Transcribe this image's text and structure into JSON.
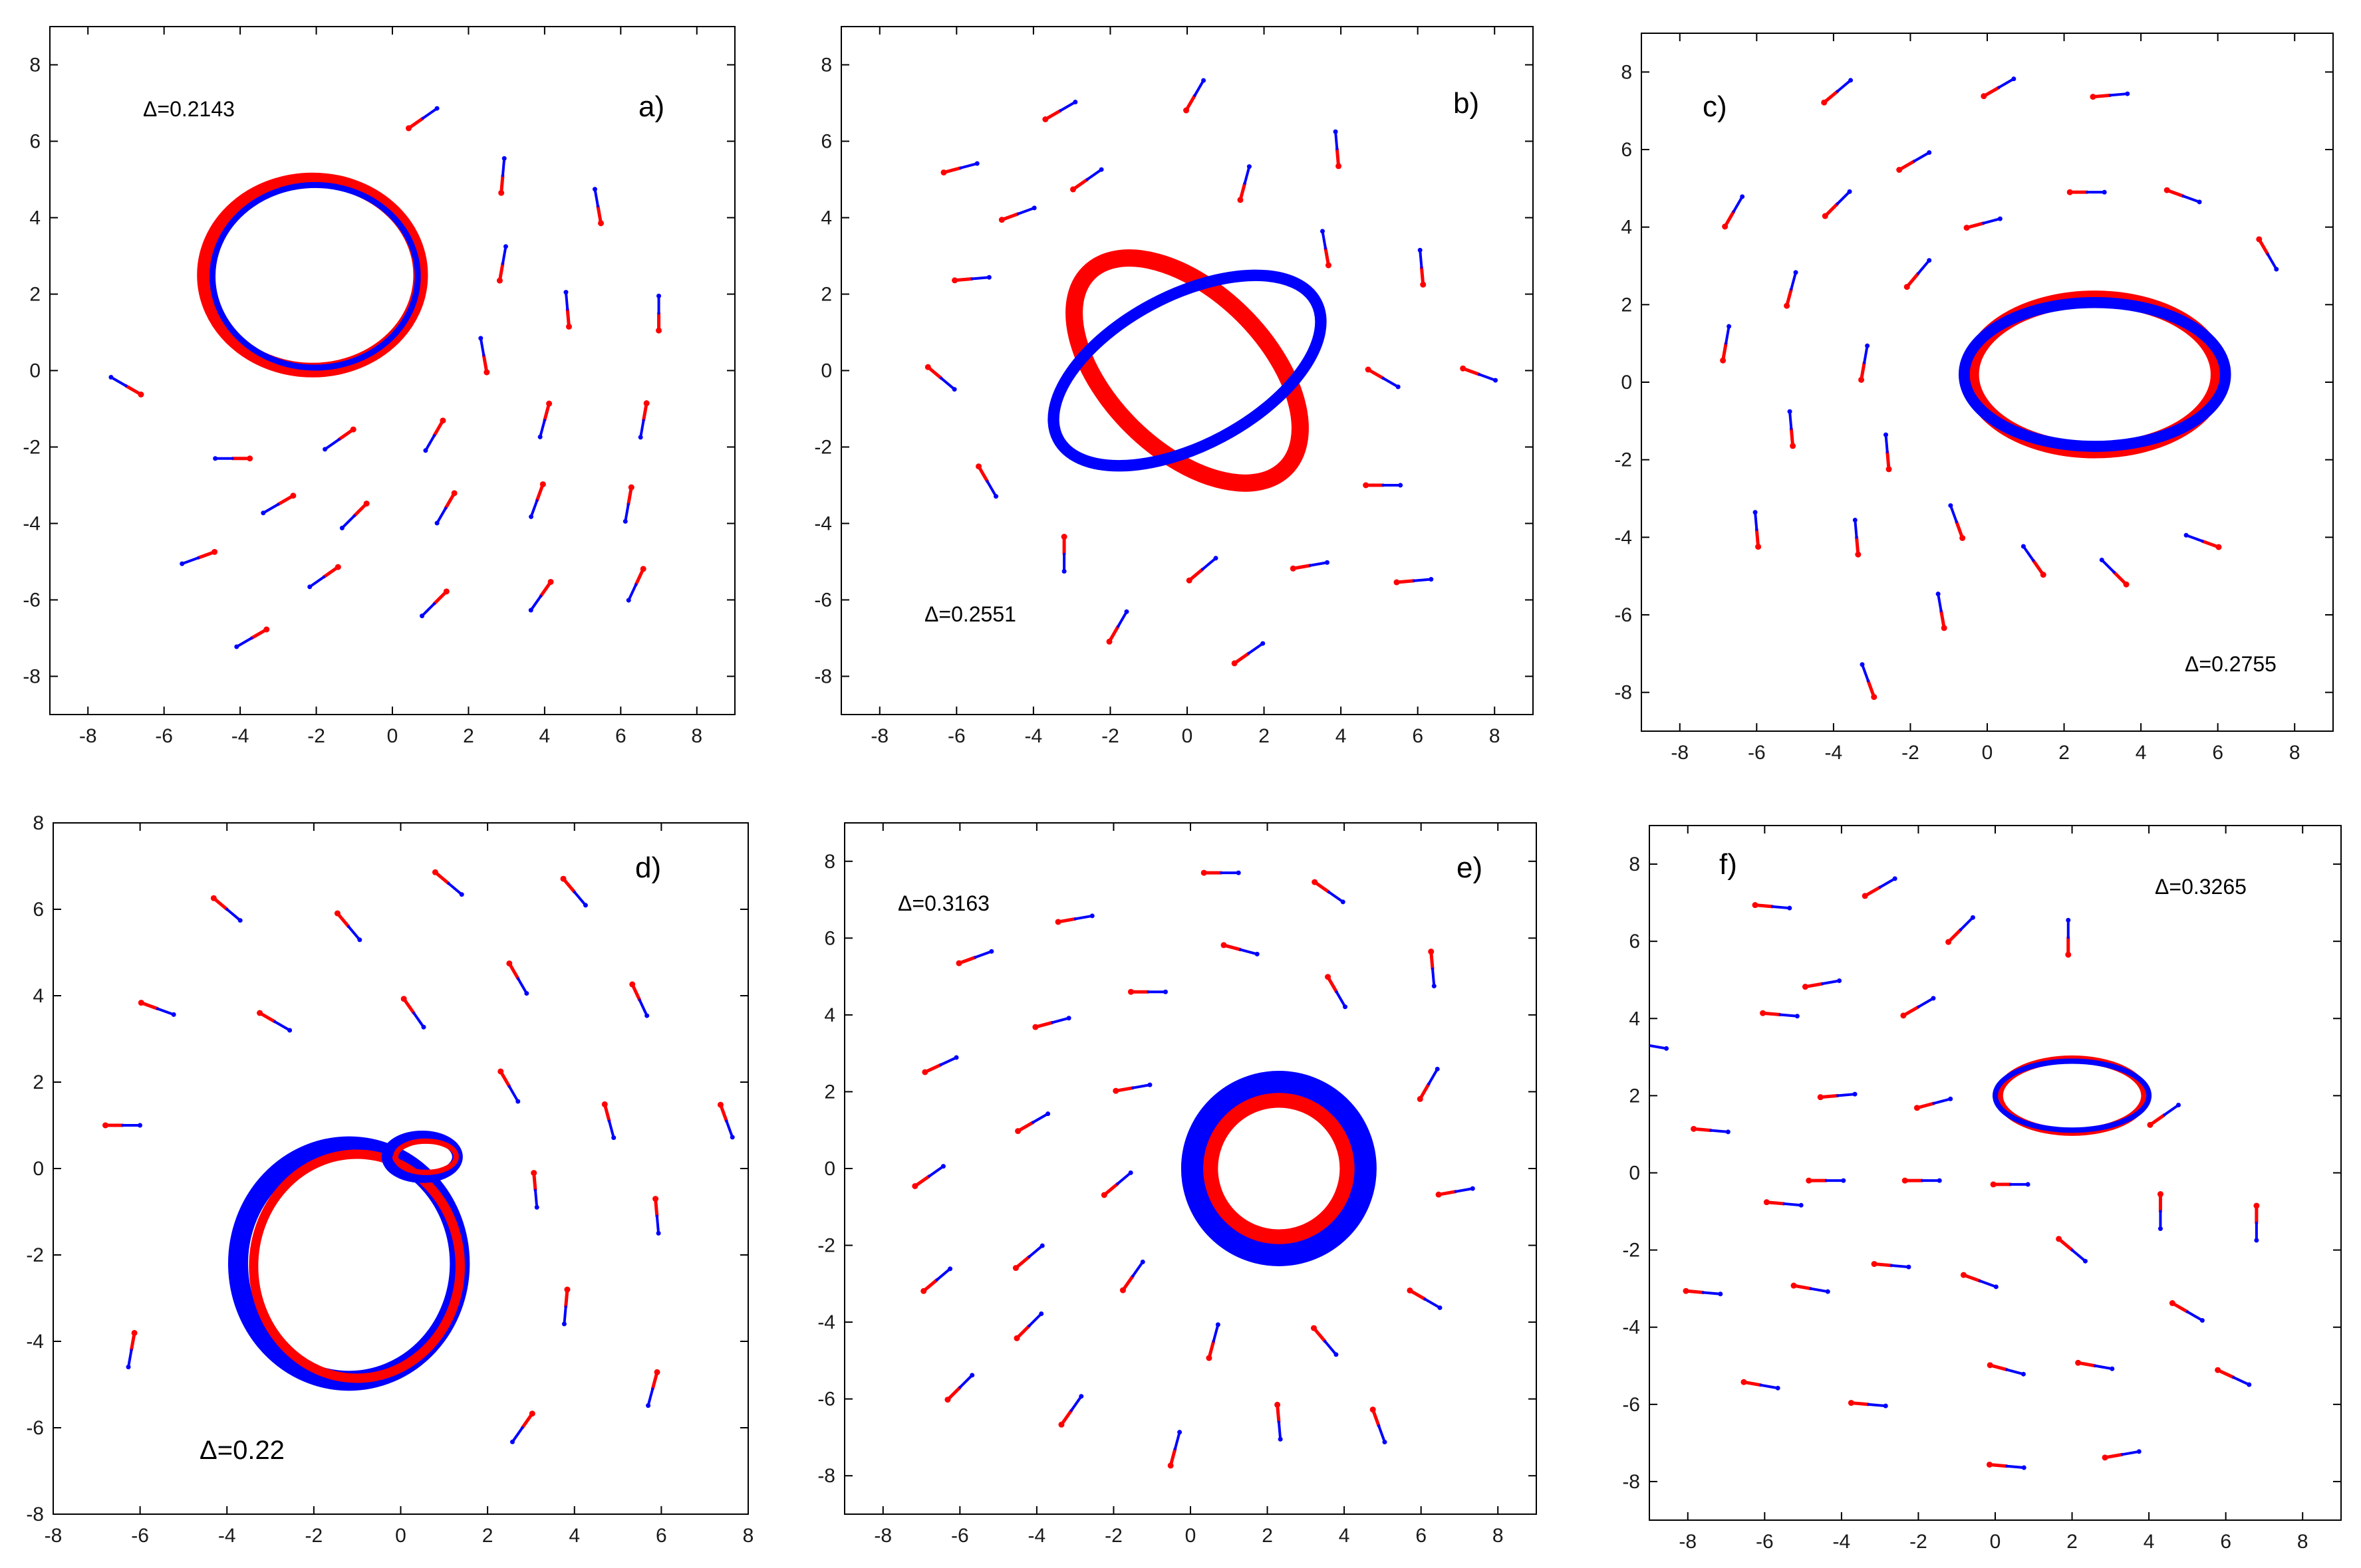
{
  "figure": {
    "colors": {
      "red": "#ff0000",
      "blue": "#0000ff",
      "axis": "#000000"
    },
    "panels": [
      {
        "panel_label": "a)",
        "delta_label": "Δ=0.2143"
      },
      {
        "panel_label": "b)",
        "delta_label": "Δ=0.2551"
      },
      {
        "panel_label": "c)",
        "delta_label": "Δ=0.2755"
      },
      {
        "panel_label": "d)",
        "delta_label": "Δ=0.22"
      },
      {
        "panel_label": "e)",
        "delta_label": "Δ=0.3163"
      },
      {
        "panel_label": "f)",
        "delta_label": "Δ=0.3265"
      }
    ]
  },
  "chart_data": [
    {
      "type": "scatter",
      "panel_label": "a)",
      "annotation": "Δ=0.2143",
      "xlim": [
        -9,
        9
      ],
      "ylim": [
        -9,
        9
      ],
      "xticks": [
        -8,
        -6,
        -4,
        -2,
        0,
        2,
        4,
        6,
        8
      ],
      "yticks": [
        -8,
        -6,
        -4,
        -2,
        0,
        2,
        4,
        6,
        8
      ],
      "rings": [
        {
          "shape": "cardioid-loop",
          "center": [
            -2.1,
            2.5
          ],
          "rx": 5.8,
          "ry": 5.0,
          "rot": 0
        }
      ],
      "vectors": [
        [
          0.8,
          6.6,
          35
        ],
        [
          2.9,
          5.1,
          85
        ],
        [
          5.4,
          4.3,
          100
        ],
        [
          2.9,
          2.8,
          80
        ],
        [
          4.6,
          1.6,
          95
        ],
        [
          7.0,
          1.5,
          90
        ],
        [
          2.4,
          0.4,
          100
        ],
        [
          -7.0,
          -0.4,
          150
        ],
        [
          -4.2,
          -2.3,
          180
        ],
        [
          -1.4,
          -1.8,
          215
        ],
        [
          1.1,
          -1.7,
          240
        ],
        [
          4.0,
          -1.3,
          255
        ],
        [
          6.6,
          -1.3,
          260
        ],
        [
          -3.0,
          -3.5,
          210
        ],
        [
          -1.0,
          -3.8,
          225
        ],
        [
          1.4,
          -3.6,
          240
        ],
        [
          3.8,
          -3.4,
          250
        ],
        [
          6.2,
          -3.5,
          260
        ],
        [
          -5.1,
          -4.9,
          200
        ],
        [
          -1.8,
          -5.4,
          215
        ],
        [
          1.1,
          -6.1,
          225
        ],
        [
          3.9,
          -5.9,
          235
        ],
        [
          6.4,
          -5.6,
          245
        ],
        [
          -3.7,
          -7.0,
          210
        ]
      ]
    },
    {
      "type": "scatter",
      "panel_label": "b)",
      "annotation": "Δ=0.2551",
      "xlim": [
        -9,
        9
      ],
      "ylim": [
        -9,
        9
      ],
      "xticks": [
        -8,
        -6,
        -4,
        -2,
        0,
        2,
        4,
        6,
        8
      ],
      "yticks": [
        -8,
        -6,
        -4,
        -2,
        0,
        2,
        4,
        6,
        8
      ],
      "rings": [
        {
          "shape": "ellipse-pair",
          "center": [
            0,
            0
          ],
          "rx": 7.6,
          "ry": 5.0,
          "rot": -28
        }
      ],
      "vectors": [
        [
          -3.3,
          6.8,
          30
        ],
        [
          0.2,
          7.2,
          60
        ],
        [
          -5.9,
          5.3,
          15
        ],
        [
          -2.6,
          5.0,
          35
        ],
        [
          1.5,
          4.9,
          75
        ],
        [
          3.9,
          5.8,
          95
        ],
        [
          -4.4,
          4.1,
          20
        ],
        [
          -5.6,
          2.4,
          5
        ],
        [
          3.6,
          3.2,
          100
        ],
        [
          6.1,
          2.7,
          95
        ],
        [
          -6.4,
          -0.2,
          320
        ],
        [
          5.1,
          -0.2,
          330
        ],
        [
          7.6,
          -0.1,
          340
        ],
        [
          -5.2,
          -2.9,
          300
        ],
        [
          -3.2,
          -4.8,
          270
        ],
        [
          5.1,
          -3.0,
          0
        ],
        [
          0.4,
          -5.2,
          40
        ],
        [
          3.2,
          -5.1,
          10
        ],
        [
          5.9,
          -5.5,
          5
        ],
        [
          -1.8,
          -6.7,
          60
        ],
        [
          1.6,
          -7.4,
          35
        ]
      ]
    },
    {
      "type": "scatter",
      "panel_label": "c)",
      "annotation": "Δ=0.2755",
      "xlim": [
        -9,
        9
      ],
      "ylim": [
        -9,
        9
      ],
      "xticks": [
        -8,
        -6,
        -4,
        -2,
        0,
        2,
        4,
        6,
        8
      ],
      "yticks": [
        -8,
        -6,
        -4,
        -2,
        0,
        2,
        4,
        6,
        8
      ],
      "rings": [
        {
          "shape": "ellipse-pair",
          "center": [
            2.8,
            0.2
          ],
          "rx": 6.8,
          "ry": 4.8,
          "rot": 0
        }
      ],
      "vectors": [
        [
          -3.9,
          7.5,
          40
        ],
        [
          0.3,
          7.6,
          30
        ],
        [
          3.2,
          7.4,
          5
        ],
        [
          -1.9,
          5.7,
          30
        ],
        [
          -3.9,
          4.6,
          45
        ],
        [
          -6.6,
          4.4,
          60
        ],
        [
          2.6,
          4.9,
          0
        ],
        [
          -0.1,
          4.1,
          15
        ],
        [
          5.1,
          4.8,
          340
        ],
        [
          -1.8,
          2.8,
          50
        ],
        [
          -5.1,
          2.4,
          75
        ],
        [
          7.3,
          3.3,
          300
        ],
        [
          -6.8,
          1.0,
          80
        ],
        [
          -3.2,
          0.5,
          80
        ],
        [
          -5.1,
          -1.2,
          95
        ],
        [
          -2.6,
          -1.8,
          95
        ],
        [
          -6.0,
          -3.8,
          95
        ],
        [
          -3.4,
          -4.0,
          95
        ],
        [
          -0.8,
          -3.6,
          110
        ],
        [
          1.2,
          -4.6,
          125
        ],
        [
          3.3,
          -4.9,
          135
        ],
        [
          5.6,
          -4.1,
          160
        ],
        [
          -1.2,
          -5.9,
          100
        ],
        [
          -3.1,
          -7.7,
          110
        ]
      ]
    },
    {
      "type": "scatter",
      "panel_label": "d)",
      "annotation": "Δ=0.22",
      "xlim": [
        -8,
        8
      ],
      "ylim": [
        -8,
        8
      ],
      "xticks": [
        -8,
        -6,
        -4,
        -2,
        0,
        2,
        4,
        6,
        8
      ],
      "yticks": [
        -8,
        -6,
        -4,
        -2,
        0,
        2,
        4,
        6,
        8
      ],
      "rings": [
        {
          "shape": "looped-ring",
          "center": [
            -1.1,
            -2.2
          ],
          "rx": 5.8,
          "ry": 6.0,
          "rot": 0
        }
      ],
      "vectors": [
        [
          -4.0,
          6.0,
          320
        ],
        [
          -1.2,
          5.6,
          310
        ],
        [
          1.1,
          6.6,
          320
        ],
        [
          4.0,
          6.4,
          310
        ],
        [
          -5.6,
          3.7,
          340
        ],
        [
          -2.9,
          3.4,
          330
        ],
        [
          0.3,
          3.6,
          305
        ],
        [
          2.7,
          4.4,
          300
        ],
        [
          5.5,
          3.9,
          295
        ],
        [
          -6.4,
          1.0,
          0
        ],
        [
          2.5,
          1.9,
          300
        ],
        [
          4.8,
          1.1,
          285
        ],
        [
          7.5,
          1.1,
          290
        ],
        [
          3.1,
          -0.5,
          275
        ],
        [
          5.9,
          -1.1,
          275
        ],
        [
          3.8,
          -3.2,
          265
        ],
        [
          -6.2,
          -4.2,
          260
        ],
        [
          5.8,
          -5.1,
          255
        ],
        [
          2.8,
          -6.0,
          235
        ]
      ]
    },
    {
      "type": "scatter",
      "panel_label": "e)",
      "annotation": "Δ=0.3163",
      "xlim": [
        -9,
        9
      ],
      "ylim": [
        -9,
        9
      ],
      "xticks": [
        -8,
        -6,
        -4,
        -2,
        0,
        2,
        4,
        6,
        8
      ],
      "yticks": [
        -8,
        -6,
        -4,
        -2,
        0,
        2,
        4,
        6,
        8
      ],
      "rings": [
        {
          "shape": "circle-pair",
          "center": [
            2.3,
            0
          ],
          "rx": 4.8,
          "ry": 4.8,
          "rot": 0
        }
      ],
      "vectors": [
        [
          -3.0,
          6.5,
          10
        ],
        [
          0.8,
          7.7,
          0
        ],
        [
          3.6,
          7.2,
          325
        ],
        [
          -5.6,
          5.5,
          20
        ],
        [
          -3.6,
          3.8,
          15
        ],
        [
          -1.1,
          4.6,
          0
        ],
        [
          1.3,
          5.7,
          345
        ],
        [
          3.8,
          4.6,
          300
        ],
        [
          6.3,
          5.2,
          275
        ],
        [
          -6.5,
          2.7,
          25
        ],
        [
          -1.5,
          2.1,
          10
        ],
        [
          6.2,
          2.2,
          60
        ],
        [
          -6.8,
          -0.2,
          35
        ],
        [
          -4.1,
          1.2,
          30
        ],
        [
          -1.9,
          -0.4,
          40
        ],
        [
          6.9,
          -0.6,
          10
        ],
        [
          -6.6,
          -2.9,
          40
        ],
        [
          -4.2,
          -2.3,
          40
        ],
        [
          -1.5,
          -2.8,
          55
        ],
        [
          6.1,
          -3.4,
          330
        ],
        [
          -4.2,
          -4.1,
          45
        ],
        [
          0.6,
          -4.5,
          75
        ],
        [
          3.5,
          -4.5,
          310
        ],
        [
          -6.0,
          -5.7,
          45
        ],
        [
          -3.1,
          -6.3,
          55
        ],
        [
          -0.4,
          -7.3,
          75
        ],
        [
          2.3,
          -6.6,
          275
        ],
        [
          4.9,
          -6.7,
          290
        ]
      ]
    },
    {
      "type": "scatter",
      "panel_label": "f)",
      "annotation": "Δ=0.3265",
      "xlim": [
        -9,
        9
      ],
      "ylim": [
        -9,
        9
      ],
      "xticks": [
        -8,
        -6,
        -4,
        -2,
        0,
        2,
        4,
        6,
        8
      ],
      "yticks": [
        -8,
        -6,
        -4,
        -2,
        0,
        2,
        4,
        6,
        8
      ],
      "rings": [
        {
          "shape": "ellipse-pair",
          "center": [
            2.0,
            2.0
          ],
          "rx": 4.0,
          "ry": 2.3,
          "rot": 0
        }
      ],
      "vectors": [
        [
          -5.8,
          6.9,
          355
        ],
        [
          -3.0,
          7.4,
          30
        ],
        [
          -0.9,
          6.3,
          45
        ],
        [
          1.9,
          6.1,
          90
        ],
        [
          -4.5,
          4.9,
          10
        ],
        [
          -5.6,
          4.1,
          355
        ],
        [
          -2.0,
          4.3,
          30
        ],
        [
          -9.0,
          3.3,
          350
        ],
        [
          -4.1,
          2.0,
          5
        ],
        [
          -1.6,
          1.8,
          15
        ],
        [
          -7.4,
          1.1,
          355
        ],
        [
          4.4,
          1.5,
          35
        ],
        [
          -4.4,
          -0.2,
          0
        ],
        [
          -1.9,
          -0.2,
          0
        ],
        [
          0.4,
          -0.3,
          0
        ],
        [
          4.3,
          -1.0,
          270
        ],
        [
          6.8,
          -1.3,
          270
        ],
        [
          -5.5,
          -0.8,
          355
        ],
        [
          -7.6,
          -3.1,
          355
        ],
        [
          -2.7,
          -2.4,
          355
        ],
        [
          -4.8,
          -3.0,
          350
        ],
        [
          -0.4,
          -2.8,
          340
        ],
        [
          2.0,
          -2.0,
          320
        ],
        [
          5.0,
          -3.6,
          330
        ],
        [
          -6.1,
          -5.5,
          350
        ],
        [
          -3.3,
          -6.0,
          355
        ],
        [
          0.3,
          -5.1,
          345
        ],
        [
          2.6,
          -5.0,
          350
        ],
        [
          6.2,
          -5.3,
          335
        ],
        [
          0.3,
          -7.6,
          355
        ],
        [
          3.3,
          -7.3,
          10
        ]
      ]
    }
  ]
}
